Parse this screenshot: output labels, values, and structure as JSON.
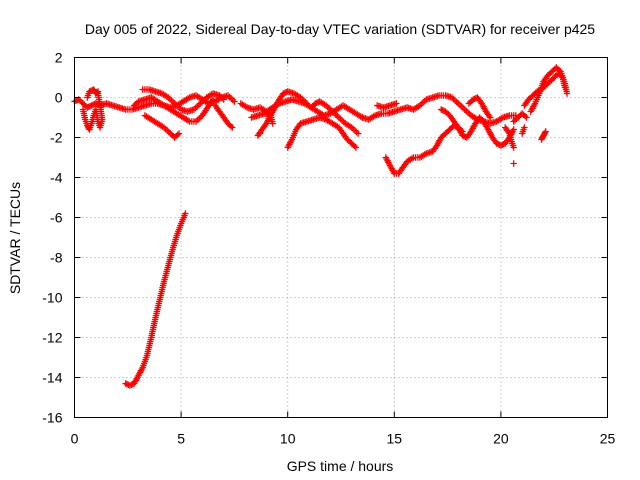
{
  "chart_data": {
    "type": "scatter",
    "title": "Day 005 of 2022, Sidereal Day-to-day VTEC variation (SDTVAR) for receiver p425",
    "xlabel": "GPS time / hours",
    "ylabel": "SDTVAR / TECUs",
    "xlim": [
      0,
      25
    ],
    "ylim": [
      -16,
      2
    ],
    "xticks": [
      0,
      5,
      10,
      15,
      20,
      25
    ],
    "yticks": [
      -16,
      -14,
      -12,
      -10,
      -8,
      -6,
      -4,
      -2,
      0,
      2
    ],
    "grid": true,
    "marker": "+",
    "series": [
      {
        "name": "SDTVAR",
        "color": "#ff0000",
        "traces": [
          [
            [
              0.0,
              -0.2
            ],
            [
              0.2,
              -0.1
            ],
            [
              0.4,
              -0.3
            ],
            [
              0.6,
              -0.5
            ],
            [
              0.8,
              -0.4
            ],
            [
              1.0,
              -0.3
            ],
            [
              1.2,
              -0.4
            ],
            [
              1.5,
              -0.3
            ],
            [
              1.8,
              -0.4
            ],
            [
              2.1,
              -0.5
            ],
            [
              2.4,
              -0.6
            ],
            [
              2.7,
              -0.6
            ],
            [
              3.0,
              -0.5
            ],
            [
              3.3,
              -0.4
            ],
            [
              3.6,
              -0.3
            ],
            [
              3.9,
              -0.3
            ],
            [
              4.2,
              -0.4
            ],
            [
              4.5,
              -0.5
            ],
            [
              4.8,
              -0.4
            ],
            [
              5.1,
              -0.2
            ],
            [
              5.4,
              0.0
            ],
            [
              5.7,
              0.1
            ],
            [
              6.0,
              -0.1
            ],
            [
              6.3,
              -0.3
            ],
            [
              6.6,
              -0.2
            ],
            [
              6.9,
              0.0
            ],
            [
              7.2,
              0.1
            ],
            [
              7.5,
              -0.2
            ]
          ],
          [
            [
              0.4,
              -0.6
            ],
            [
              0.5,
              -1.1
            ],
            [
              0.6,
              -1.4
            ],
            [
              0.7,
              -1.6
            ],
            [
              0.8,
              -1.3
            ],
            [
              0.9,
              -0.9
            ],
            [
              1.0,
              -0.6
            ],
            [
              1.1,
              -1.2
            ],
            [
              1.2,
              -1.5
            ],
            [
              1.3,
              -1.1
            ],
            [
              1.2,
              -0.4
            ],
            [
              1.1,
              0.2
            ]
          ],
          [
            [
              0.6,
              0.0
            ],
            [
              0.7,
              0.3
            ],
            [
              0.9,
              0.4
            ],
            [
              1.0,
              0.2
            ],
            [
              1.1,
              0.3
            ]
          ],
          [
            [
              2.8,
              -0.4
            ],
            [
              3.0,
              -0.2
            ],
            [
              3.3,
              -0.1
            ],
            [
              3.6,
              0.0
            ],
            [
              3.9,
              -0.2
            ],
            [
              4.2,
              -0.4
            ],
            [
              4.5,
              -0.6
            ],
            [
              4.8,
              -0.8
            ],
            [
              5.1,
              -1.0
            ],
            [
              5.4,
              -1.2
            ],
            [
              5.7,
              -1.2
            ],
            [
              6.0,
              -0.9
            ],
            [
              6.3,
              -0.4
            ],
            [
              6.5,
              -0.1
            ]
          ],
          [
            [
              3.2,
              0.4
            ],
            [
              3.5,
              0.4
            ],
            [
              3.8,
              0.3
            ],
            [
              4.1,
              0.2
            ],
            [
              4.4,
              0.0
            ],
            [
              4.7,
              -0.3
            ],
            [
              5.0,
              -0.6
            ],
            [
              5.3,
              -0.7
            ],
            [
              5.6,
              -0.6
            ],
            [
              5.9,
              -0.3
            ],
            [
              6.2,
              0.0
            ],
            [
              6.5,
              0.2
            ],
            [
              6.8,
              0.1
            ],
            [
              7.0,
              -0.1
            ]
          ],
          [
            [
              3.3,
              -0.9
            ],
            [
              3.6,
              -1.1
            ],
            [
              3.9,
              -1.3
            ],
            [
              4.2,
              -1.5
            ],
            [
              4.5,
              -1.8
            ],
            [
              4.7,
              -2.0
            ],
            [
              4.9,
              -1.8
            ]
          ],
          [
            [
              6.6,
              -0.4
            ],
            [
              6.8,
              -0.7
            ],
            [
              7.0,
              -1.0
            ],
            [
              7.2,
              -1.3
            ],
            [
              7.4,
              -1.5
            ]
          ],
          [
            [
              2.4,
              -14.3
            ],
            [
              2.6,
              -14.4
            ],
            [
              2.8,
              -14.3
            ],
            [
              3.0,
              -13.9
            ],
            [
              3.2,
              -13.5
            ],
            [
              3.4,
              -12.9
            ],
            [
              3.6,
              -12.0
            ],
            [
              3.8,
              -11.0
            ],
            [
              4.0,
              -10.1
            ],
            [
              4.2,
              -9.2
            ],
            [
              4.4,
              -8.4
            ],
            [
              4.6,
              -7.6
            ],
            [
              4.8,
              -6.9
            ],
            [
              5.0,
              -6.3
            ],
            [
              5.2,
              -5.8
            ]
          ],
          [
            [
              7.8,
              -0.3
            ],
            [
              8.1,
              -0.5
            ],
            [
              8.4,
              -0.6
            ],
            [
              8.7,
              -0.5
            ],
            [
              9.0,
              -0.7
            ],
            [
              9.3,
              -0.5
            ],
            [
              9.6,
              -0.3
            ],
            [
              9.9,
              -0.2
            ],
            [
              10.2,
              -0.1
            ],
            [
              10.5,
              -0.2
            ],
            [
              10.8,
              -0.3
            ],
            [
              11.1,
              -0.5
            ],
            [
              11.4,
              -0.7
            ],
            [
              11.7,
              -0.9
            ],
            [
              12.0,
              -0.8
            ],
            [
              12.3,
              -0.6
            ],
            [
              12.6,
              -0.4
            ],
            [
              12.9,
              -0.6
            ],
            [
              13.2,
              -0.8
            ],
            [
              13.5,
              -1.0
            ]
          ],
          [
            [
              8.3,
              -1.0
            ],
            [
              8.6,
              -0.9
            ],
            [
              8.9,
              -0.8
            ],
            [
              9.2,
              -0.9
            ],
            [
              9.3,
              -1.3
            ]
          ],
          [
            [
              8.6,
              -1.9
            ],
            [
              8.8,
              -1.6
            ],
            [
              9.0,
              -1.3
            ],
            [
              9.2,
              -0.9
            ],
            [
              9.4,
              -0.5
            ],
            [
              9.6,
              -0.1
            ],
            [
              9.8,
              0.2
            ],
            [
              10.0,
              0.3
            ],
            [
              10.3,
              0.2
            ],
            [
              10.6,
              0.0
            ],
            [
              10.9,
              -0.3
            ]
          ],
          [
            [
              8.7,
              -1.8
            ]
          ],
          [
            [
              10.0,
              -2.5
            ],
            [
              10.2,
              -2.1
            ],
            [
              10.4,
              -1.6
            ],
            [
              10.6,
              -1.3
            ],
            [
              10.9,
              -1.2
            ],
            [
              11.2,
              -1.1
            ],
            [
              11.5,
              -1.0
            ],
            [
              11.8,
              -1.1
            ],
            [
              12.1,
              -1.3
            ],
            [
              12.4,
              -1.5
            ],
            [
              12.6,
              -1.8
            ],
            [
              12.8,
              -2.1
            ],
            [
              13.0,
              -2.3
            ],
            [
              13.2,
              -2.5
            ]
          ],
          [
            [
              11.1,
              -0.5
            ],
            [
              11.3,
              -0.3
            ],
            [
              11.5,
              -0.2
            ],
            [
              11.8,
              -0.4
            ],
            [
              12.1,
              -0.7
            ],
            [
              12.4,
              -1.0
            ],
            [
              12.7,
              -1.3
            ],
            [
              13.0,
              -1.5
            ],
            [
              13.3,
              -1.8
            ]
          ],
          [
            [
              13.5,
              -1.0
            ],
            [
              13.8,
              -1.1
            ],
            [
              14.1,
              -0.9
            ],
            [
              14.4,
              -0.8
            ],
            [
              14.7,
              -0.8
            ],
            [
              15.0,
              -0.7
            ],
            [
              15.3,
              -0.6
            ],
            [
              15.6,
              -0.5
            ],
            [
              15.9,
              -0.6
            ],
            [
              16.2,
              -0.4
            ],
            [
              16.5,
              -0.1
            ],
            [
              16.8,
              0.0
            ],
            [
              17.1,
              0.1
            ],
            [
              17.4,
              0.1
            ],
            [
              17.7,
              0.0
            ],
            [
              18.0,
              -0.3
            ],
            [
              18.3,
              -0.6
            ],
            [
              18.6,
              -0.9
            ],
            [
              18.9,
              -1.1
            ],
            [
              19.2,
              -1.2
            ],
            [
              19.5,
              -1.3
            ],
            [
              19.8,
              -1.2
            ],
            [
              20.1,
              -1.0
            ],
            [
              20.4,
              -0.9
            ],
            [
              20.7,
              -0.9
            ]
          ],
          [
            [
              14.2,
              -0.4
            ],
            [
              14.5,
              -0.5
            ],
            [
              14.8,
              -0.4
            ],
            [
              15.1,
              -0.3
            ]
          ],
          [
            [
              14.6,
              -3.0
            ],
            [
              14.8,
              -3.4
            ],
            [
              15.0,
              -3.8
            ],
            [
              15.2,
              -3.8
            ],
            [
              15.4,
              -3.5
            ],
            [
              15.6,
              -3.2
            ],
            [
              15.9,
              -3.0
            ],
            [
              16.2,
              -3.0
            ],
            [
              16.5,
              -2.8
            ],
            [
              16.8,
              -2.7
            ],
            [
              17.0,
              -2.4
            ],
            [
              17.2,
              -2.0
            ],
            [
              17.4,
              -1.8
            ],
            [
              17.6,
              -1.6
            ],
            [
              17.8,
              -1.4
            ],
            [
              18.0,
              -1.5
            ],
            [
              18.2,
              -1.7
            ]
          ],
          [
            [
              17.2,
              -0.6
            ],
            [
              17.4,
              -0.7
            ],
            [
              17.6,
              -0.9
            ],
            [
              17.8,
              -1.2
            ],
            [
              18.0,
              -1.5
            ],
            [
              18.2,
              -1.9
            ],
            [
              18.4,
              -2.0
            ],
            [
              18.6,
              -1.7
            ],
            [
              18.8,
              -1.3
            ],
            [
              19.0,
              -1.0
            ],
            [
              19.2,
              -1.2
            ],
            [
              19.4,
              -1.6
            ],
            [
              19.6,
              -2.0
            ],
            [
              19.8,
              -2.3
            ],
            [
              20.0,
              -2.4
            ],
            [
              20.2,
              -2.3
            ],
            [
              20.4,
              -2.0
            ],
            [
              20.6,
              -1.6
            ]
          ],
          [
            [
              18.5,
              -0.3
            ],
            [
              18.7,
              -0.1
            ],
            [
              18.9,
              0.0
            ],
            [
              19.1,
              -0.3
            ],
            [
              19.3,
              -0.7
            ],
            [
              19.5,
              -1.0
            ]
          ],
          [
            [
              20.2,
              -1.5
            ],
            [
              20.4,
              -1.8
            ],
            [
              20.5,
              -2.2
            ],
            [
              20.6,
              -2.5
            ]
          ],
          [
            [
              20.6,
              -1.2
            ],
            [
              20.8,
              -1.0
            ],
            [
              21.0,
              -0.8
            ],
            [
              21.2,
              -1.0
            ]
          ],
          [
            [
              20.6,
              -3.3
            ]
          ],
          [
            [
              21.0,
              -1.8
            ],
            [
              21.1,
              -1.5
            ]
          ],
          [
            [
              21.1,
              -0.4
            ],
            [
              21.3,
              -0.1
            ],
            [
              21.5,
              0.1
            ],
            [
              21.7,
              0.3
            ],
            [
              21.9,
              0.4
            ],
            [
              22.1,
              0.6
            ],
            [
              22.3,
              0.8
            ],
            [
              22.5,
              1.0
            ],
            [
              22.7,
              1.2
            ],
            [
              22.9,
              1.0
            ],
            [
              23.0,
              0.5
            ]
          ],
          [
            [
              21.4,
              -0.7
            ],
            [
              21.6,
              -0.3
            ],
            [
              21.8,
              0.2
            ],
            [
              22.0,
              0.8
            ],
            [
              22.2,
              1.1
            ],
            [
              22.4,
              1.3
            ],
            [
              22.6,
              1.5
            ],
            [
              22.8,
              1.3
            ],
            [
              23.0,
              0.7
            ],
            [
              23.1,
              0.2
            ]
          ],
          [
            [
              21.9,
              -2.1
            ],
            [
              22.0,
              -1.9
            ],
            [
              22.1,
              -1.7
            ]
          ]
        ]
      }
    ]
  }
}
